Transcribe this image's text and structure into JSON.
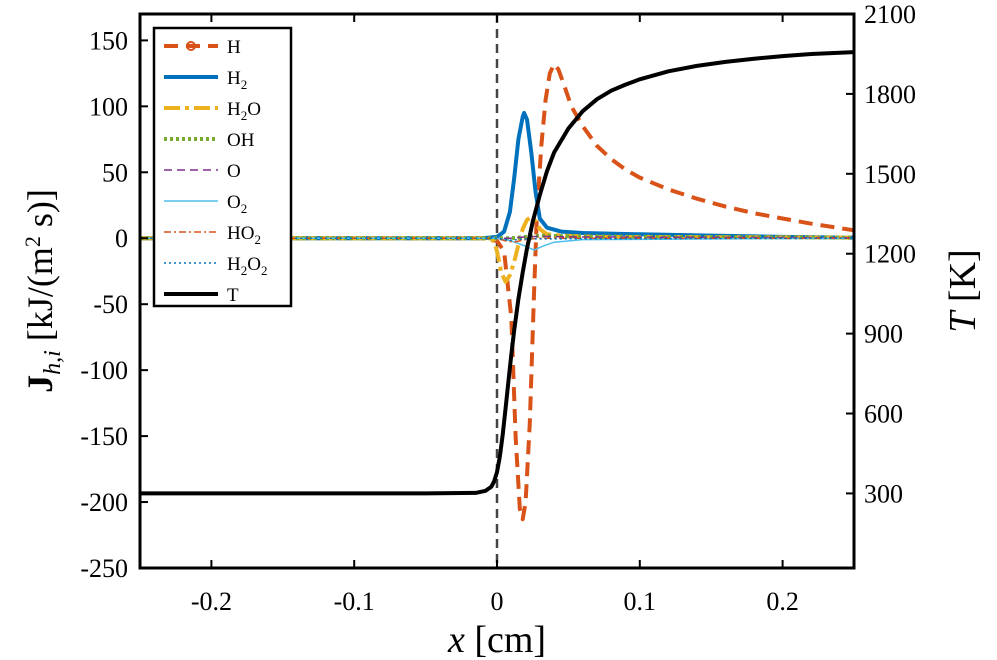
{
  "chart_data": {
    "type": "line",
    "title": "",
    "xlabel": {
      "var": "x",
      "unit": "cm"
    },
    "ylabel_left": {
      "bold": "J",
      "sub": "h,i",
      "unit": "kJ/(m",
      "sup": "2",
      "unit_end": " s)"
    },
    "ylabel_right": {
      "var": "T",
      "unit": "K"
    },
    "xlim": [
      -0.25,
      0.25
    ],
    "ylim_left": [
      -250,
      170
    ],
    "ylim_right": [
      20,
      2100
    ],
    "x_ticks": [
      -0.2,
      -0.1,
      0,
      0.1,
      0.2
    ],
    "x_tick_labels": [
      "-0.2",
      "-0.1",
      "0",
      "0.1",
      "0.2"
    ],
    "y_left_ticks": [
      -250,
      -200,
      -150,
      -100,
      -50,
      0,
      50,
      100,
      150
    ],
    "y_left_tick_labels": [
      "-250",
      "-200",
      "-150",
      "-100",
      "-50",
      "0",
      "50",
      "100",
      "150"
    ],
    "y_right_ticks": [
      300,
      600,
      900,
      1200,
      1500,
      1800,
      2100
    ],
    "y_right_tick_labels": [
      "300",
      "600",
      "900",
      "1200",
      "1500",
      "1800",
      "2100"
    ],
    "reference_line": {
      "x": 0,
      "style": "dashed"
    },
    "legend_position": "top-left",
    "series": [
      {
        "name": "H",
        "base": "H",
        "sub": "",
        "tail": "",
        "axis": "left",
        "color": "#D95319",
        "dash": "14 8",
        "width": 4,
        "marker": "o",
        "points": [
          [
            -0.25,
            0
          ],
          [
            -0.01,
            0
          ],
          [
            0.0,
            -2
          ],
          [
            0.005,
            -10
          ],
          [
            0.01,
            -60
          ],
          [
            0.013,
            -150
          ],
          [
            0.016,
            -205
          ],
          [
            0.018,
            -213
          ],
          [
            0.02,
            -200
          ],
          [
            0.023,
            -140
          ],
          [
            0.026,
            -40
          ],
          [
            0.028,
            20
          ],
          [
            0.031,
            70
          ],
          [
            0.034,
            105
          ],
          [
            0.037,
            125
          ],
          [
            0.04,
            132
          ],
          [
            0.043,
            128
          ],
          [
            0.047,
            116
          ],
          [
            0.052,
            100
          ],
          [
            0.06,
            85
          ],
          [
            0.07,
            70
          ],
          [
            0.08,
            60
          ],
          [
            0.09,
            52
          ],
          [
            0.1,
            46
          ],
          [
            0.12,
            37
          ],
          [
            0.14,
            30
          ],
          [
            0.16,
            24
          ],
          [
            0.18,
            19
          ],
          [
            0.2,
            15
          ],
          [
            0.22,
            11
          ],
          [
            0.25,
            6
          ]
        ]
      },
      {
        "name": "H2",
        "base": "H",
        "sub": "2",
        "tail": "",
        "axis": "left",
        "color": "#0072BD",
        "dash": "",
        "width": 4,
        "marker": "",
        "points": [
          [
            -0.25,
            0
          ],
          [
            -0.01,
            0
          ],
          [
            0.0,
            1
          ],
          [
            0.005,
            5
          ],
          [
            0.009,
            20
          ],
          [
            0.012,
            45
          ],
          [
            0.015,
            75
          ],
          [
            0.018,
            92
          ],
          [
            0.019,
            95
          ],
          [
            0.021,
            90
          ],
          [
            0.024,
            65
          ],
          [
            0.027,
            35
          ],
          [
            0.03,
            15
          ],
          [
            0.035,
            8
          ],
          [
            0.045,
            5
          ],
          [
            0.06,
            4
          ],
          [
            0.1,
            3
          ],
          [
            0.15,
            2
          ],
          [
            0.2,
            1
          ],
          [
            0.25,
            0.5
          ]
        ]
      },
      {
        "name": "H2O",
        "base": "H",
        "sub": "2",
        "tail": "O",
        "axis": "left",
        "color": "#EDB120",
        "dash": "16 5 4 5",
        "width": 4,
        "marker": "",
        "points": [
          [
            -0.25,
            0
          ],
          [
            -0.01,
            0
          ],
          [
            -0.002,
            -2
          ],
          [
            0.0,
            -10
          ],
          [
            0.003,
            -26
          ],
          [
            0.006,
            -33
          ],
          [
            0.009,
            -28
          ],
          [
            0.012,
            -18
          ],
          [
            0.015,
            -5
          ],
          [
            0.018,
            7
          ],
          [
            0.021,
            14
          ],
          [
            0.024,
            16
          ],
          [
            0.027,
            13
          ],
          [
            0.03,
            7
          ],
          [
            0.035,
            3
          ],
          [
            0.045,
            2
          ],
          [
            0.07,
            1
          ],
          [
            0.25,
            0.5
          ]
        ]
      },
      {
        "name": "OH",
        "base": "OH",
        "sub": "",
        "tail": "",
        "axis": "left",
        "color": "#77AC30",
        "dash": "3 3",
        "width": 4,
        "marker": "",
        "points": [
          [
            -0.25,
            0
          ],
          [
            0.01,
            0
          ],
          [
            0.02,
            1
          ],
          [
            0.03,
            2
          ],
          [
            0.05,
            1.5
          ],
          [
            0.1,
            1
          ],
          [
            0.25,
            0.5
          ]
        ]
      },
      {
        "name": "O",
        "base": "O",
        "sub": "",
        "tail": "",
        "axis": "left",
        "color": "#7E2F8E",
        "dash": "8 5",
        "width": 1.5,
        "marker": "",
        "points": [
          [
            -0.25,
            0
          ],
          [
            0.01,
            0
          ],
          [
            0.02,
            1
          ],
          [
            0.03,
            1.5
          ],
          [
            0.05,
            1
          ],
          [
            0.25,
            0.3
          ]
        ]
      },
      {
        "name": "O2",
        "base": "O",
        "sub": "2",
        "tail": "",
        "axis": "left",
        "color": "#4DBEEE",
        "dash": "",
        "width": 1.5,
        "marker": "",
        "points": [
          [
            -0.25,
            0
          ],
          [
            0.0,
            0
          ],
          [
            0.01,
            -2
          ],
          [
            0.02,
            -6
          ],
          [
            0.026,
            -9
          ],
          [
            0.032,
            -6
          ],
          [
            0.04,
            -3
          ],
          [
            0.06,
            -1
          ],
          [
            0.25,
            0
          ]
        ]
      },
      {
        "name": "HO2",
        "base": "HO",
        "sub": "2",
        "tail": "",
        "axis": "left",
        "color": "#D95319",
        "dash": "7 3 2 3",
        "width": 1.5,
        "marker": "",
        "points": [
          [
            -0.25,
            0
          ],
          [
            0.0,
            0
          ],
          [
            0.006,
            -2
          ],
          [
            0.012,
            -3
          ],
          [
            0.02,
            -1
          ],
          [
            0.03,
            0
          ],
          [
            0.25,
            0
          ]
        ]
      },
      {
        "name": "H2O2",
        "base": "H",
        "sub": "2",
        "tail": "O<sub>2</sub>",
        "axis": "left",
        "color": "#0072BD",
        "dash": "2 3",
        "width": 1.5,
        "marker": "",
        "points": [
          [
            -0.25,
            0
          ],
          [
            0.0,
            0
          ],
          [
            0.005,
            -1
          ],
          [
            0.01,
            -1.5
          ],
          [
            0.02,
            -0.5
          ],
          [
            0.25,
            0
          ]
        ]
      },
      {
        "name": "T",
        "base": "T",
        "sub": "",
        "tail": "",
        "axis": "right",
        "color": "#000000",
        "dash": "",
        "width": 4,
        "marker": "",
        "points": [
          [
            -0.25,
            300
          ],
          [
            -0.05,
            300
          ],
          [
            -0.015,
            302
          ],
          [
            -0.008,
            310
          ],
          [
            -0.004,
            325
          ],
          [
            -0.002,
            345
          ],
          [
            0.0,
            380
          ],
          [
            0.002,
            440
          ],
          [
            0.004,
            520
          ],
          [
            0.006,
            620
          ],
          [
            0.008,
            720
          ],
          [
            0.01,
            820
          ],
          [
            0.012,
            910
          ],
          [
            0.015,
            1030
          ],
          [
            0.018,
            1130
          ],
          [
            0.021,
            1220
          ],
          [
            0.025,
            1320
          ],
          [
            0.03,
            1420
          ],
          [
            0.035,
            1510
          ],
          [
            0.04,
            1580
          ],
          [
            0.05,
            1670
          ],
          [
            0.06,
            1735
          ],
          [
            0.07,
            1780
          ],
          [
            0.08,
            1812
          ],
          [
            0.09,
            1835
          ],
          [
            0.1,
            1855
          ],
          [
            0.12,
            1885
          ],
          [
            0.14,
            1905
          ],
          [
            0.16,
            1920
          ],
          [
            0.18,
            1932
          ],
          [
            0.2,
            1942
          ],
          [
            0.22,
            1950
          ],
          [
            0.25,
            1957
          ]
        ]
      }
    ]
  }
}
